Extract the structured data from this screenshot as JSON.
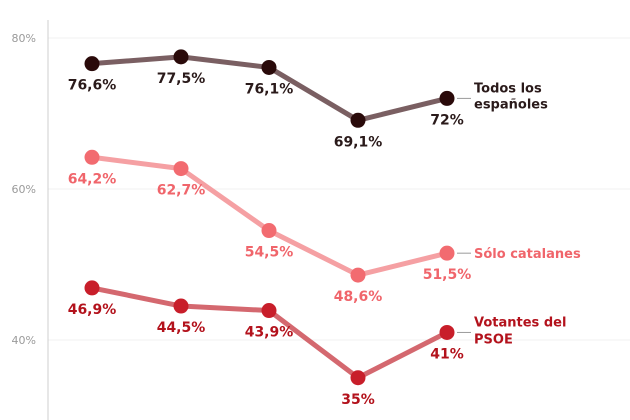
{
  "chart_data": {
    "type": "line",
    "y_unit": "%",
    "ylim": [
      30,
      84
    ],
    "yticks": [
      {
        "value": 80,
        "label": "80%"
      },
      {
        "value": 60,
        "label": "60%"
      },
      {
        "value": 40,
        "label": "40%"
      }
    ],
    "grid": true,
    "x_count": 5,
    "series": [
      {
        "name": "Todos los españoles",
        "name_lines": [
          "Todos los",
          "españoles"
        ],
        "values": [
          76.6,
          77.5,
          76.1,
          69.1,
          72
        ],
        "labels": [
          "76,6%",
          "77,5%",
          "76,1%",
          "69,1%",
          "72%"
        ],
        "label_pos": [
          "below",
          "below",
          "below",
          "below",
          "below"
        ],
        "line_color": "#7a5f62",
        "marker_color": "#2a0a0a",
        "label_color": "#2a1a1a"
      },
      {
        "name": "Sólo catalanes",
        "name_lines": [
          "Sólo catalanes"
        ],
        "values": [
          64.2,
          62.7,
          54.5,
          48.6,
          51.5
        ],
        "labels": [
          "64,2%",
          "62,7%",
          "54,5%",
          "48,6%",
          "51,5%"
        ],
        "label_pos": [
          "below",
          "below",
          "below",
          "below",
          "below"
        ],
        "line_color": "#f5a0a3",
        "marker_color": "#f26b70",
        "label_color": "#f0656b"
      },
      {
        "name": "Votantes del PSOE",
        "name_lines": [
          "Votantes del",
          "PSOE"
        ],
        "values": [
          46.9,
          44.5,
          43.9,
          35,
          41
        ],
        "labels": [
          "46,9%",
          "44,5%",
          "43,9%",
          "35%",
          "41%"
        ],
        "label_pos": [
          "below",
          "below",
          "below",
          "below",
          "below"
        ],
        "line_color": "#d4686f",
        "marker_color": "#c81e2a",
        "label_color": "#b3121c"
      }
    ]
  }
}
